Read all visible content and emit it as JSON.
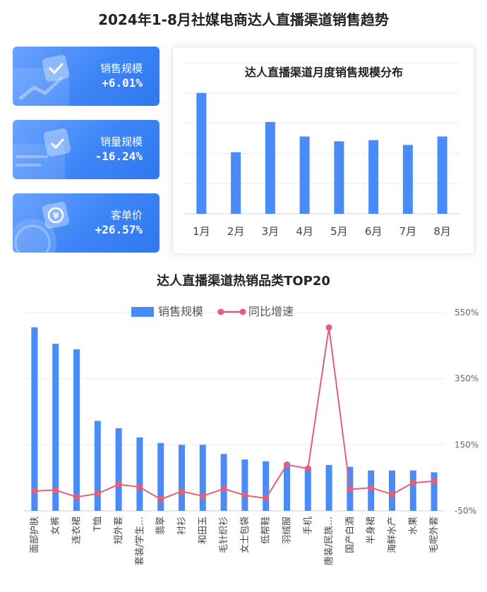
{
  "page": {
    "title": "2024年1-8月社媒电商达人直播渠道销售趋势"
  },
  "kpis": [
    {
      "label": "销售规模",
      "value": "+6.01%",
      "icon": "chart-check-icon"
    },
    {
      "label": "销量规模",
      "value": "-16.24%",
      "icon": "clipboard-check-icon"
    },
    {
      "label": "客单价",
      "value": "+26.57%",
      "icon": "yuan-coin-icon"
    }
  ],
  "chart_data": [
    {
      "type": "bar",
      "title": "达人直播渠道月度销售规模分布",
      "categories": [
        "1月",
        "2月",
        "3月",
        "4月",
        "5月",
        "6月",
        "7月",
        "8月"
      ],
      "values": [
        100,
        51,
        76,
        64,
        60,
        61,
        57,
        64
      ],
      "ylim": [
        0,
        125
      ],
      "grid": true,
      "color": "#4a8cf7"
    },
    {
      "type": "bar+line",
      "title": "达人直播渠道热销品类TOP20",
      "legend": {
        "position": "top-center",
        "entries": [
          "销售规模",
          "同比增速"
        ]
      },
      "categories": [
        "面部护肤",
        "女裤",
        "连衣裙",
        "T恤",
        "短外套",
        "套装/学生…",
        "翡翠",
        "衬衫",
        "和田玉",
        "毛针织衫",
        "女士包袋",
        "低帮鞋",
        "羽绒服",
        "手机",
        "唐装/民族…",
        "国产白酒",
        "半身裙",
        "海鲜水产",
        "水果",
        "毛呢外套"
      ],
      "series": [
        {
          "name": "销售规模",
          "type": "bar",
          "values": [
            100,
            91,
            88,
            49,
            45,
            40,
            37,
            36,
            36,
            31,
            28,
            27,
            26,
            24,
            25,
            24,
            22,
            22,
            22,
            21
          ],
          "color": "#4a8cf7"
        },
        {
          "name": "同比增速",
          "type": "line",
          "axis": "right",
          "values": [
            10,
            13,
            -8,
            2,
            30,
            22,
            -15,
            9,
            -5,
            17,
            -3,
            -12,
            90,
            78,
            505,
            15,
            20,
            0,
            35,
            40
          ],
          "color": "#e0607a"
        }
      ],
      "y_left_range": [
        0,
        108
      ],
      "y_right": {
        "range": [
          -50,
          550
        ],
        "ticks": [
          -50,
          150,
          350,
          550
        ],
        "tick_labels": [
          "-50%",
          "150%",
          "350%",
          "550%"
        ]
      },
      "grid": true
    }
  ]
}
